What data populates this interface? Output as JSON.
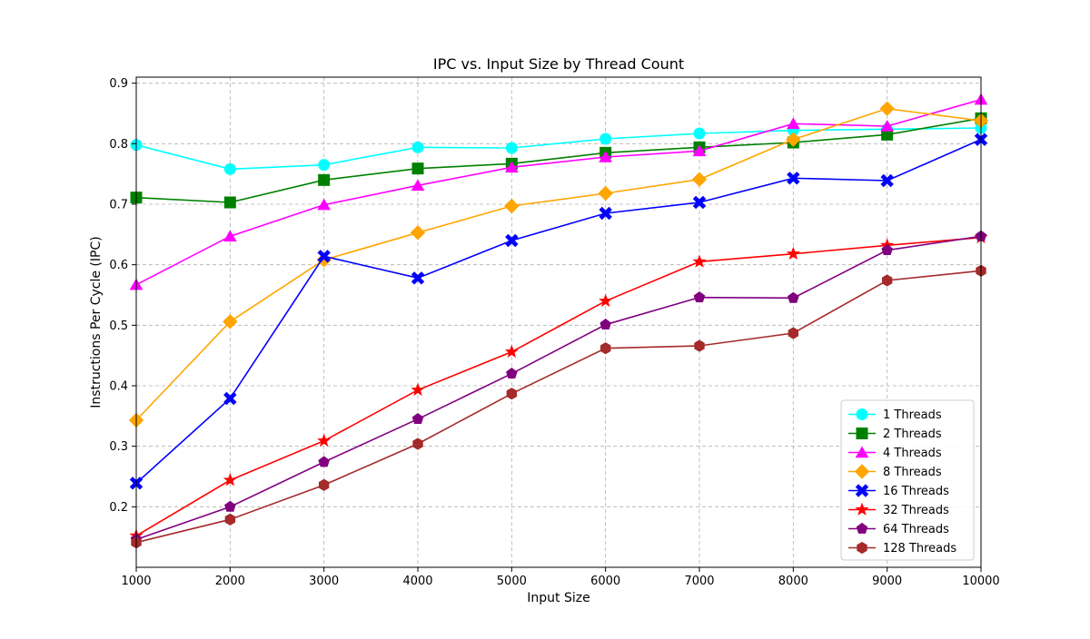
{
  "chart_data": {
    "type": "line",
    "title": "IPC vs. Input Size by Thread Count",
    "xlabel": "Input Size",
    "ylabel": "Instructions Per Cycle (IPC)",
    "xlim": [
      1000,
      10000
    ],
    "ylim": [
      0.1,
      0.91
    ],
    "xticks": [
      1000,
      2000,
      3000,
      4000,
      5000,
      6000,
      7000,
      8000,
      9000,
      10000
    ],
    "yticks": [
      0.2,
      0.3,
      0.4,
      0.5,
      0.6,
      0.7,
      0.8,
      0.9
    ],
    "grid": true,
    "legend_position": "lower-right",
    "x": [
      1000,
      2000,
      3000,
      4000,
      5000,
      6000,
      7000,
      8000,
      9000,
      10000
    ],
    "series": [
      {
        "name": "1 Threads",
        "color": "#00ffff",
        "marker": "circle",
        "values": [
          0.798,
          0.758,
          0.765,
          0.794,
          0.793,
          0.808,
          0.817,
          0.822,
          0.824,
          0.826
        ]
      },
      {
        "name": "2 Threads",
        "color": "#008000",
        "marker": "square",
        "values": [
          0.711,
          0.703,
          0.74,
          0.759,
          0.767,
          0.785,
          0.794,
          0.802,
          0.815,
          0.842
        ]
      },
      {
        "name": "4 Threads",
        "color": "#ff00ff",
        "marker": "triangle",
        "values": [
          0.567,
          0.647,
          0.699,
          0.731,
          0.761,
          0.778,
          0.788,
          0.833,
          0.829,
          0.873
        ]
      },
      {
        "name": "8 Threads",
        "color": "#ffa500",
        "marker": "diamond",
        "values": [
          0.343,
          0.506,
          0.608,
          0.653,
          0.697,
          0.718,
          0.741,
          0.807,
          0.858,
          0.838
        ]
      },
      {
        "name": "16 Threads",
        "color": "#0000ff",
        "marker": "x",
        "values": [
          0.239,
          0.379,
          0.614,
          0.578,
          0.64,
          0.685,
          0.703,
          0.743,
          0.739,
          0.807
        ]
      },
      {
        "name": "32 Threads",
        "color": "#ff0000",
        "marker": "star",
        "values": [
          0.152,
          0.244,
          0.309,
          0.393,
          0.456,
          0.54,
          0.605,
          0.618,
          0.632,
          0.645
        ]
      },
      {
        "name": "64 Threads",
        "color": "#800080",
        "marker": "pentagon",
        "values": [
          0.146,
          0.2,
          0.274,
          0.345,
          0.42,
          0.501,
          0.546,
          0.545,
          0.624,
          0.647
        ]
      },
      {
        "name": "128 Threads",
        "color": "#a52a2a",
        "marker": "hexagon",
        "values": [
          0.141,
          0.179,
          0.236,
          0.304,
          0.387,
          0.462,
          0.466,
          0.487,
          0.574,
          0.59
        ]
      }
    ]
  }
}
